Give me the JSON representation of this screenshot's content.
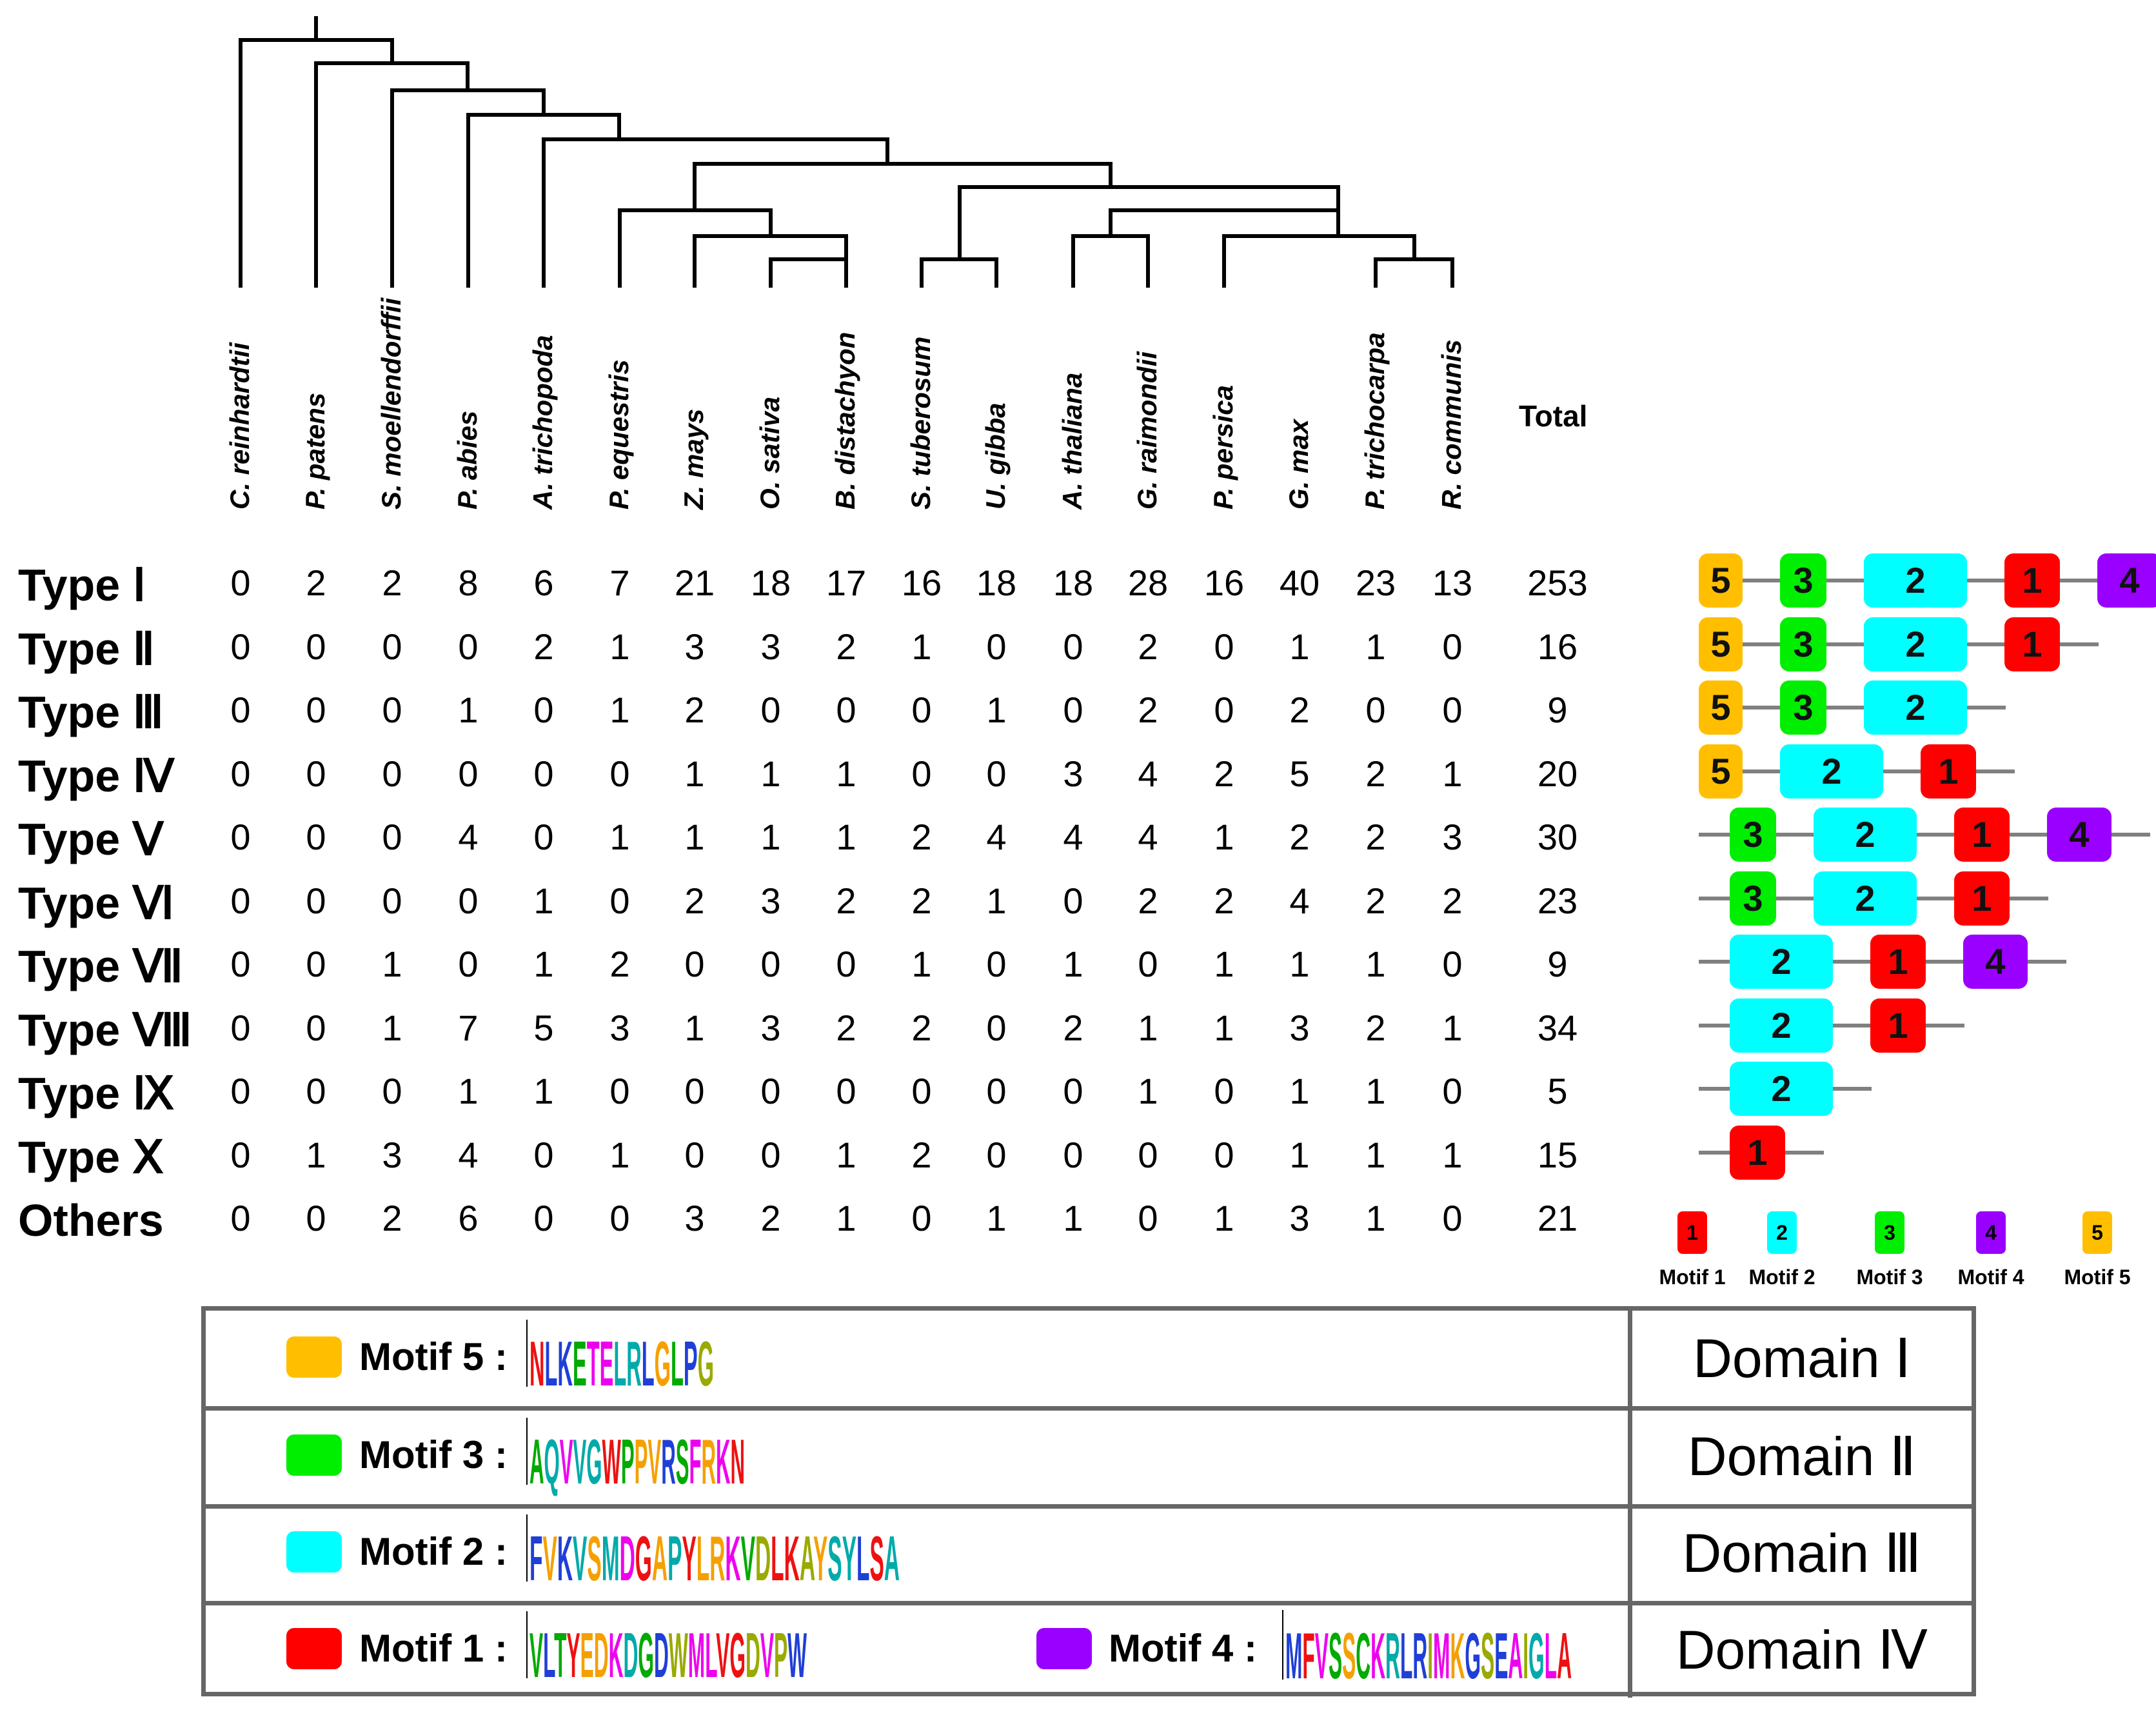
{
  "species": [
    "C. reinhardtii",
    "P. patens",
    "S. moellendorffii",
    "P. abies",
    "A. trichopoda",
    "P. equestris",
    "Z. mays",
    "O. sativa",
    "B. distachyon",
    "S. tuberosum",
    "U. gibba",
    "A. thaliana",
    "G. raimondii",
    "P. persica",
    "G. max",
    "P. trichocarpa",
    "R. communis"
  ],
  "total_label": "Total",
  "rows": [
    {
      "label": "Type Ⅰ",
      "values": [
        0,
        2,
        2,
        8,
        6,
        7,
        21,
        18,
        17,
        16,
        18,
        18,
        28,
        16,
        40,
        23,
        13
      ],
      "total": 253,
      "motifs": [
        "5",
        "3",
        "2",
        "1",
        "4"
      ]
    },
    {
      "label": "Type Ⅱ",
      "values": [
        0,
        0,
        0,
        0,
        2,
        1,
        3,
        3,
        2,
        1,
        0,
        0,
        2,
        0,
        1,
        1,
        0
      ],
      "total": 16,
      "motifs": [
        "5",
        "3",
        "2",
        "1"
      ]
    },
    {
      "label": "Type Ⅲ",
      "values": [
        0,
        0,
        0,
        1,
        0,
        1,
        2,
        0,
        0,
        0,
        1,
        0,
        2,
        0,
        2,
        0,
        0
      ],
      "total": 9,
      "motifs": [
        "5",
        "3",
        "2"
      ]
    },
    {
      "label": "Type Ⅳ",
      "values": [
        0,
        0,
        0,
        0,
        0,
        0,
        1,
        1,
        1,
        0,
        0,
        3,
        4,
        2,
        5,
        2,
        1
      ],
      "total": 20,
      "motifs": [
        "5",
        "2",
        "1"
      ]
    },
    {
      "label": "Type Ⅴ",
      "values": [
        0,
        0,
        0,
        4,
        0,
        1,
        1,
        1,
        1,
        2,
        4,
        4,
        4,
        1,
        2,
        2,
        3
      ],
      "total": 30,
      "motifs": [
        "3",
        "2",
        "1",
        "4"
      ]
    },
    {
      "label": "Type Ⅵ",
      "values": [
        0,
        0,
        0,
        0,
        1,
        0,
        2,
        3,
        2,
        2,
        1,
        0,
        2,
        2,
        4,
        2,
        2
      ],
      "total": 23,
      "motifs": [
        "3",
        "2",
        "1"
      ]
    },
    {
      "label": "Type Ⅶ",
      "values": [
        0,
        0,
        1,
        0,
        1,
        2,
        0,
        0,
        0,
        1,
        0,
        1,
        0,
        1,
        1,
        1,
        0
      ],
      "total": 9,
      "motifs": [
        "2",
        "1",
        "4"
      ]
    },
    {
      "label": "Type Ⅷ",
      "values": [
        0,
        0,
        1,
        7,
        5,
        3,
        1,
        3,
        2,
        2,
        0,
        2,
        1,
        1,
        3,
        2,
        1
      ],
      "total": 34,
      "motifs": [
        "2",
        "1"
      ]
    },
    {
      "label": "Type Ⅸ",
      "values": [
        0,
        0,
        0,
        1,
        1,
        0,
        0,
        0,
        0,
        0,
        0,
        0,
        1,
        0,
        1,
        1,
        0
      ],
      "total": 5,
      "motifs": [
        "2"
      ]
    },
    {
      "label": "Type Ⅹ",
      "values": [
        0,
        1,
        3,
        4,
        0,
        1,
        0,
        0,
        1,
        2,
        0,
        0,
        0,
        0,
        1,
        1,
        1
      ],
      "total": 15,
      "motifs": [
        "1"
      ]
    },
    {
      "label": "Others",
      "values": [
        0,
        0,
        2,
        6,
        0,
        0,
        3,
        2,
        1,
        0,
        1,
        1,
        0,
        1,
        3,
        1,
        0
      ],
      "total": 21,
      "motifs": []
    }
  ],
  "motif_colors": {
    "1": "#ff0000",
    "2": "#00ffff",
    "3": "#00ee00",
    "4": "#9900ff",
    "5": "#ffbf00"
  },
  "legend": [
    {
      "num": "1",
      "label": "Motif 1"
    },
    {
      "num": "2",
      "label": "Motif 2"
    },
    {
      "num": "3",
      "label": "Motif 3"
    },
    {
      "num": "4",
      "label": "Motif 4"
    },
    {
      "num": "5",
      "label": "Motif 5"
    }
  ],
  "domains": [
    {
      "motif_label": "Motif 5 :",
      "domain": "Domain Ⅰ",
      "logo_text": "NLKETELRLGLPG"
    },
    {
      "motif_label": "Motif 3 :",
      "domain": "Domain Ⅱ",
      "logo_text": "AQVVGWPPVRSFRKN"
    },
    {
      "motif_label": "Motif 2 :",
      "domain": "Domain Ⅲ",
      "logo_text": "FVKVSMDGAPYLRKVDLKAYSYLSA"
    },
    {
      "motif_label": "Motif 1 :",
      "domain": "Domain Ⅳ",
      "logo_text": "VLTYEDKDGDWMLVGDVPW",
      "second_label": "Motif 4 :",
      "second_logo_text": "MFVSSCKRLRIMKGSEAIGLA"
    }
  ]
}
